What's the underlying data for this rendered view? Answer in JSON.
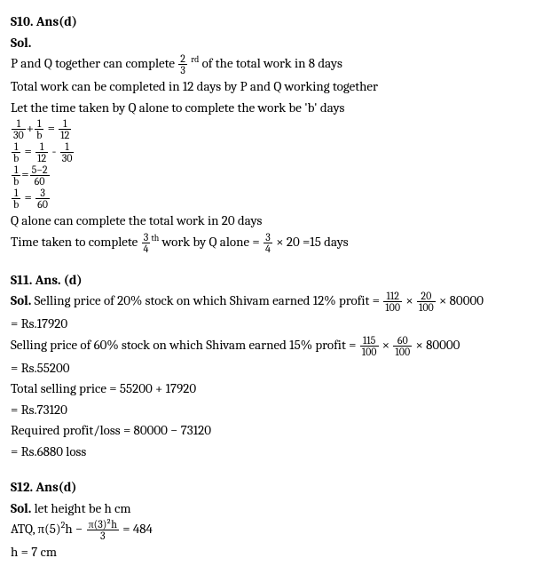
{
  "s10": {
    "heading": "S10. Ans(d)",
    "sol_label": "Sol.",
    "line1_a": "P and Q together can complete ",
    "frac1": {
      "num": "2",
      "den": "3"
    },
    "line1_sup": "rd",
    "line1_b": " of the total work in 8 days",
    "line2": "Total work can be completed in 12 days by P and Q working together",
    "line3": "Let the time taken by Q alone to complete the work be 'b' days",
    "eq1": {
      "f1n": "1",
      "f1d": "30",
      "plus": "+",
      "f2n": "1",
      "f2d": "b",
      "eq": " = ",
      "f3n": "1",
      "f3d": "12"
    },
    "eq2": {
      "f1n": "1",
      "f1d": "b",
      "eq": " = ",
      "f2n": "1",
      "f2d": "12",
      "minus": " - ",
      "f3n": "1",
      "f3d": "30"
    },
    "eq3": {
      "f1n": "1",
      "f1d": "b",
      "eq": "=",
      "f2n": "5−2",
      "f2d": "60"
    },
    "eq4": {
      "f1n": "1",
      "f1d": "b",
      "eq": " = ",
      "f2n": "3",
      "f2d": "60"
    },
    "line4": "Q alone can complete the total work in 20 days",
    "line5_a": "Time taken to complete ",
    "frac2": {
      "num": "3",
      "den": "4"
    },
    "line5_sup": "th",
    "line5_b": " work by Q alone =",
    "frac3": {
      "num": "3",
      "den": "4"
    },
    "line5_c": " × 20 =15 days"
  },
  "s11": {
    "heading": "S11. Ans. (d)",
    "sol_label": "Sol. ",
    "line1_a": "Selling price of 20% stock on which Shivam earned 12% profit = ",
    "frac1": {
      "num": "112",
      "den": "100"
    },
    "times": " × ",
    "frac2": {
      "num": "20",
      "den": "100"
    },
    "line1_b": " × 80000",
    "line2": "= Rs.17920",
    "line3_a": "Selling price of 60% stock on which Shivam earned 15% profit = ",
    "frac3": {
      "num": "115",
      "den": "100"
    },
    "frac4": {
      "num": "60",
      "den": "100"
    },
    "line3_b": " × 80000",
    "line4": "= Rs.55200",
    "line5": "Total selling price = 55200 + 17920",
    "line6": "= Rs.73120",
    "line7": "Required profit/loss = 80000 − 73120",
    "line8": "= Rs.6880 loss"
  },
  "s12": {
    "heading": "S12. Ans(d)",
    "sol_label": "Sol. ",
    "line1": "let height be h cm",
    "line2_a": "ATQ, π(5)",
    "sup2": "2",
    "line2_b": "h − ",
    "frac1": {
      "num": "π(3)²h",
      "den": "3"
    },
    "line2_c": " = 484",
    "line3": "h = 7 cm"
  }
}
